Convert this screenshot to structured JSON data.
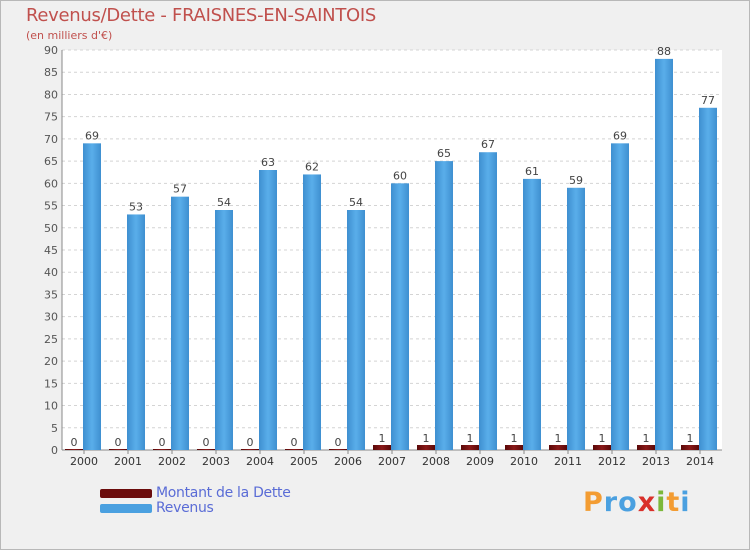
{
  "title": "Revenus/Dette - FRAISNES-EN-SAINTOIS",
  "subtitle": "(en milliers d'€)",
  "colors": {
    "dette": "#6b0c0c",
    "revenus": "#4aa0e0",
    "title": "#c0504d",
    "legend_text": "#5a6cd6"
  },
  "legend": [
    {
      "label": "Montant de la Dette",
      "color": "#6b0c0c"
    },
    {
      "label": "Revenus",
      "color": "#4aa0e0"
    }
  ],
  "logo": {
    "letters": [
      {
        "ch": "P",
        "color": "#f39c32"
      },
      {
        "ch": "r",
        "color": "#4aa0e0"
      },
      {
        "ch": "o",
        "color": "#4aa0e0"
      },
      {
        "ch": "x",
        "color": "#d9302a"
      },
      {
        "ch": "i",
        "color": "#7cb83a"
      },
      {
        "ch": "t",
        "color": "#f39c32"
      },
      {
        "ch": "i",
        "color": "#4aa0e0"
      }
    ]
  },
  "chart_data": {
    "type": "bar",
    "title": "Revenus/Dette - FRAISNES-EN-SAINTOIS",
    "subtitle": "(en milliers d'€)",
    "categories": [
      "2000",
      "2001",
      "2002",
      "2003",
      "2004",
      "2005",
      "2006",
      "2007",
      "2008",
      "2009",
      "2010",
      "2011",
      "2012",
      "2013",
      "2014"
    ],
    "series": [
      {
        "name": "Montant de la Dette",
        "values": [
          0,
          0,
          0,
          0,
          0,
          0,
          0,
          1,
          1,
          1,
          1,
          1,
          1,
          1,
          1
        ]
      },
      {
        "name": "Revenus",
        "values": [
          69,
          53,
          57,
          54,
          63,
          62,
          54,
          60,
          65,
          67,
          61,
          59,
          69,
          88,
          77
        ]
      }
    ],
    "ylim": [
      0,
      90
    ],
    "yticks": [
      0,
      5,
      10,
      15,
      20,
      25,
      30,
      35,
      40,
      45,
      50,
      55,
      60,
      65,
      70,
      75,
      80,
      85,
      90
    ],
    "grid": true,
    "legend_position": "bottom-left"
  }
}
